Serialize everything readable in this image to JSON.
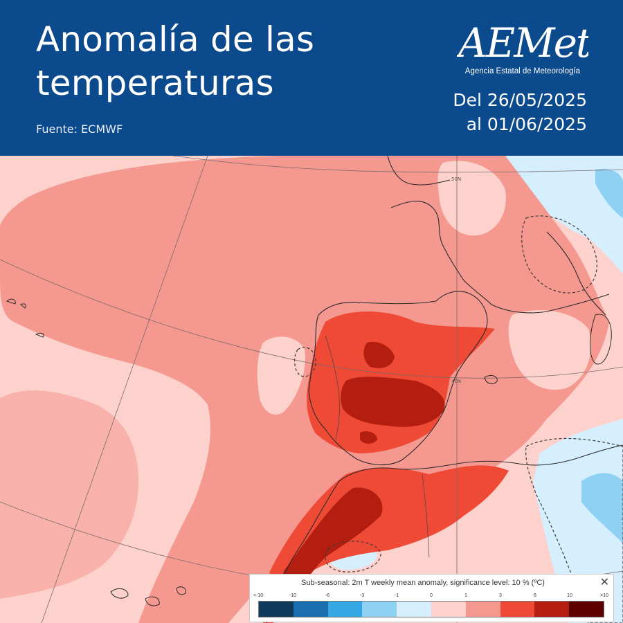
{
  "header": {
    "title_line1": "Anomalía de las",
    "title_line2": "temperaturas",
    "source": "Fuente: ECMWF",
    "logo_text": "AEMet",
    "logo_subtitle": "Agencia Estatal de Meteorología",
    "date_from": "Del 26/05/2025",
    "date_to": "al 01/06/2025"
  },
  "map": {
    "latitude_labels": [
      "50N",
      "40N"
    ]
  },
  "legend": {
    "title": "Sub-seasonal: 2m T weekly mean anomaly, significance level: 10 % (ºC)",
    "close_symbol": "✕",
    "tick_labels": [
      "<-10",
      "-10",
      "-6",
      "-3",
      "-1",
      "0",
      "1",
      "3",
      "6",
      "10",
      ">10"
    ],
    "colors": [
      "#0f3b5f",
      "#1b6fae",
      "#35a7e2",
      "#8fd1f2",
      "#d5efff",
      "#fdd2cc",
      "#f5988f",
      "#ee4a36",
      "#b41e10",
      "#5c0000"
    ]
  },
  "colors": {
    "header_background": "#0b4a8c",
    "anomaly_weak": "#fdd2cc",
    "anomaly_moderate": "#f5988f",
    "anomaly_strong": "#ee4a36",
    "anomaly_very_strong": "#b41e10",
    "anomaly_extreme": "#5c0000",
    "cold_light": "#d5efff",
    "cold_moderate": "#8fd1f2"
  }
}
